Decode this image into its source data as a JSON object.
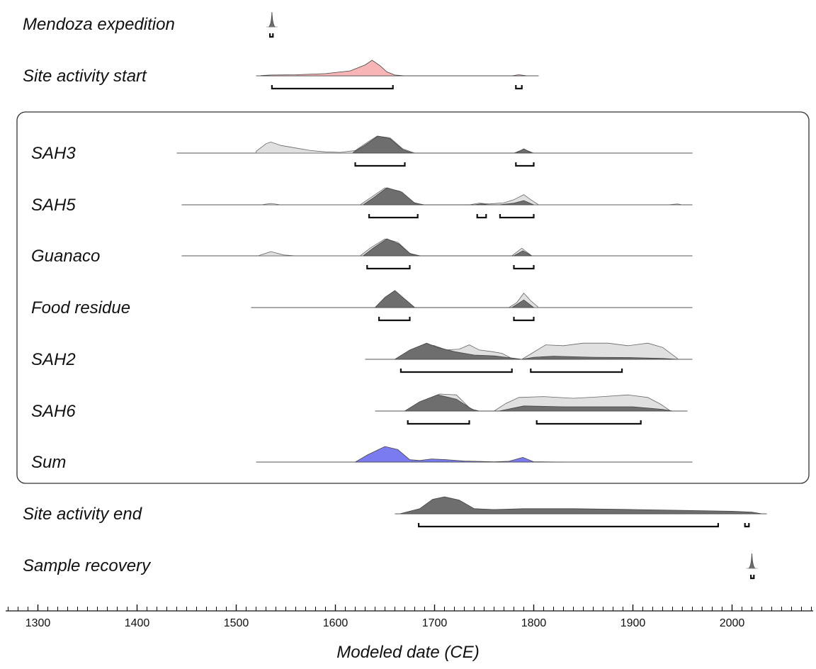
{
  "chart_data": {
    "type": "area",
    "title": "",
    "xlabel": "Modeled date (CE)",
    "ylabel": "",
    "x_unit": "CE",
    "xlim": [
      1270,
      2080
    ],
    "major_ticks": [
      1300,
      1400,
      1500,
      1600,
      1700,
      1800,
      1900,
      2000
    ],
    "minor_tick_step": 10,
    "grid": false,
    "legend": "none",
    "colors": {
      "prior": "#e0e0e0",
      "posterior": "#6e6e6e",
      "site_start": "#f7b5b5",
      "sum": "#7b7bf0",
      "outline": "#444444",
      "frame": "#333333"
    },
    "rows": [
      {
        "label": "Mendoza expedition",
        "style": "point",
        "baseline": false,
        "peaks": [
          {
            "center": 1536,
            "width": 1.2,
            "height": 1
          }
        ],
        "ranges": [
          [
            1534,
            1537
          ]
        ]
      },
      {
        "label": "Site activity start",
        "style": "start",
        "baseline": [
          1520,
          1805
        ],
        "posterior": [
          [
            1525,
            0.02
          ],
          [
            1535,
            0.05
          ],
          [
            1560,
            0.07
          ],
          [
            1590,
            0.14
          ],
          [
            1615,
            0.32
          ],
          [
            1630,
            0.7
          ],
          [
            1637,
            1.0
          ],
          [
            1645,
            0.65
          ],
          [
            1652,
            0.25
          ],
          [
            1660,
            0.05
          ],
          [
            1670,
            0.0
          ],
          [
            1778,
            0.0
          ],
          [
            1785,
            0.07
          ],
          [
            1793,
            0.0
          ]
        ],
        "ranges": [
          [
            1536,
            1658
          ],
          [
            1782,
            1788
          ]
        ]
      },
      {
        "label": "SAH3",
        "style": "sample",
        "baseline": [
          1440,
          1960
        ],
        "prior": [
          [
            1520,
            0.1
          ],
          [
            1530,
            0.55
          ],
          [
            1535,
            0.65
          ],
          [
            1545,
            0.45
          ],
          [
            1560,
            0.3
          ],
          [
            1575,
            0.15
          ],
          [
            1590,
            0.07
          ],
          [
            1605,
            0.04
          ],
          [
            1620,
            0.15
          ],
          [
            1630,
            0.55
          ],
          [
            1642,
            1.0
          ],
          [
            1655,
            0.9
          ],
          [
            1668,
            0.25
          ],
          [
            1680,
            0.0
          ],
          [
            1780,
            0.0
          ],
          [
            1790,
            0.22
          ],
          [
            1800,
            0.0
          ]
        ],
        "posterior": [
          [
            1618,
            0.05
          ],
          [
            1628,
            0.4
          ],
          [
            1643,
            1.0
          ],
          [
            1655,
            0.85
          ],
          [
            1668,
            0.2
          ],
          [
            1678,
            0.0
          ],
          [
            1782,
            0.0
          ],
          [
            1790,
            0.25
          ],
          [
            1798,
            0.0
          ]
        ],
        "ranges": [
          [
            1620,
            1670
          ],
          [
            1782,
            1800
          ]
        ]
      },
      {
        "label": "SAH5",
        "style": "sample",
        "baseline": [
          1445,
          1960
        ],
        "prior": [
          [
            1525,
            0.0
          ],
          [
            1535,
            0.08
          ],
          [
            1545,
            0.0
          ],
          [
            1625,
            0.0
          ],
          [
            1635,
            0.4
          ],
          [
            1650,
            1.0
          ],
          [
            1665,
            0.8
          ],
          [
            1678,
            0.15
          ],
          [
            1688,
            0.0
          ],
          [
            1735,
            0.0
          ],
          [
            1745,
            0.1
          ],
          [
            1755,
            0.05
          ],
          [
            1770,
            0.12
          ],
          [
            1780,
            0.3
          ],
          [
            1790,
            0.6
          ],
          [
            1797,
            0.3
          ],
          [
            1805,
            0.0
          ],
          [
            1935,
            0.0
          ],
          [
            1945,
            0.05
          ],
          [
            1950,
            0.0
          ]
        ],
        "posterior": [
          [
            1628,
            0.0
          ],
          [
            1638,
            0.4
          ],
          [
            1652,
            1.0
          ],
          [
            1667,
            0.75
          ],
          [
            1680,
            0.1
          ],
          [
            1690,
            0.0
          ],
          [
            1740,
            0.0
          ],
          [
            1747,
            0.06
          ],
          [
            1755,
            0.0
          ],
          [
            1765,
            0.0
          ],
          [
            1780,
            0.1
          ],
          [
            1790,
            0.25
          ],
          [
            1800,
            0.0
          ]
        ],
        "ranges": [
          [
            1634,
            1683
          ],
          [
            1743,
            1752
          ],
          [
            1766,
            1800
          ]
        ]
      },
      {
        "label": "Guanaco",
        "style": "sample",
        "baseline": [
          1445,
          1960
        ],
        "prior": [
          [
            1522,
            0.0
          ],
          [
            1535,
            0.25
          ],
          [
            1548,
            0.05
          ],
          [
            1560,
            0.0
          ],
          [
            1625,
            0.0
          ],
          [
            1635,
            0.45
          ],
          [
            1650,
            1.0
          ],
          [
            1663,
            0.8
          ],
          [
            1675,
            0.15
          ],
          [
            1685,
            0.0
          ],
          [
            1778,
            0.0
          ],
          [
            1788,
            0.45
          ],
          [
            1798,
            0.0
          ]
        ],
        "posterior": [
          [
            1628,
            0.0
          ],
          [
            1638,
            0.45
          ],
          [
            1652,
            1.0
          ],
          [
            1664,
            0.7
          ],
          [
            1676,
            0.1
          ],
          [
            1686,
            0.0
          ],
          [
            1780,
            0.0
          ],
          [
            1789,
            0.3
          ],
          [
            1798,
            0.0
          ]
        ],
        "ranges": [
          [
            1632,
            1675
          ],
          [
            1780,
            1800
          ]
        ]
      },
      {
        "label": "Food residue",
        "style": "sample",
        "baseline": [
          1515,
          1960
        ],
        "prior": [
          [
            1640,
            0.0
          ],
          [
            1650,
            0.6
          ],
          [
            1660,
            1.0
          ],
          [
            1670,
            0.5
          ],
          [
            1680,
            0.0
          ],
          [
            1775,
            0.0
          ],
          [
            1783,
            0.3
          ],
          [
            1790,
            0.85
          ],
          [
            1797,
            0.4
          ],
          [
            1805,
            0.0
          ]
        ],
        "posterior": [
          [
            1640,
            0.0
          ],
          [
            1650,
            0.6
          ],
          [
            1660,
            1.0
          ],
          [
            1670,
            0.5
          ],
          [
            1680,
            0.0
          ],
          [
            1778,
            0.0
          ],
          [
            1790,
            0.45
          ],
          [
            1800,
            0.0
          ]
        ],
        "ranges": [
          [
            1644,
            1675
          ],
          [
            1780,
            1800
          ]
        ]
      },
      {
        "label": "SAH2",
        "style": "sample",
        "baseline": [
          1630,
          1960
        ],
        "prior": [
          [
            1660,
            0.0
          ],
          [
            1675,
            0.45
          ],
          [
            1690,
            0.9
          ],
          [
            1700,
            0.8
          ],
          [
            1712,
            0.55
          ],
          [
            1725,
            0.6
          ],
          [
            1735,
            0.85
          ],
          [
            1745,
            0.55
          ],
          [
            1758,
            0.45
          ],
          [
            1768,
            0.35
          ],
          [
            1778,
            0.05
          ],
          [
            1788,
            0.0
          ],
          [
            1798,
            0.35
          ],
          [
            1812,
            0.85
          ],
          [
            1830,
            0.8
          ],
          [
            1850,
            0.95
          ],
          [
            1875,
            0.95
          ],
          [
            1895,
            0.8
          ],
          [
            1915,
            0.95
          ],
          [
            1930,
            0.7
          ],
          [
            1945,
            0.05
          ]
        ],
        "posterior": [
          [
            1660,
            0.0
          ],
          [
            1675,
            0.55
          ],
          [
            1692,
            0.95
          ],
          [
            1703,
            0.7
          ],
          [
            1720,
            0.45
          ],
          [
            1740,
            0.25
          ],
          [
            1760,
            0.2
          ],
          [
            1778,
            0.08
          ],
          [
            1788,
            0.0
          ],
          [
            1800,
            0.12
          ],
          [
            1820,
            0.18
          ],
          [
            1860,
            0.12
          ],
          [
            1900,
            0.1
          ],
          [
            1930,
            0.05
          ],
          [
            1945,
            0.0
          ]
        ],
        "ranges": [
          [
            1666,
            1778
          ],
          [
            1797,
            1889
          ]
        ]
      },
      {
        "label": "SAH6",
        "style": "sample",
        "baseline": [
          1640,
          1955
        ],
        "prior": [
          [
            1670,
            0.0
          ],
          [
            1685,
            0.5
          ],
          [
            1705,
            1.0
          ],
          [
            1722,
            0.95
          ],
          [
            1735,
            0.2
          ],
          [
            1742,
            0.0
          ],
          [
            1760,
            0.0
          ],
          [
            1772,
            0.45
          ],
          [
            1785,
            0.8
          ],
          [
            1810,
            0.85
          ],
          [
            1840,
            0.75
          ],
          [
            1870,
            0.85
          ],
          [
            1895,
            0.95
          ],
          [
            1915,
            0.8
          ],
          [
            1928,
            0.4
          ],
          [
            1938,
            0.0
          ]
        ],
        "posterior": [
          [
            1670,
            0.0
          ],
          [
            1685,
            0.55
          ],
          [
            1703,
            0.95
          ],
          [
            1722,
            0.7
          ],
          [
            1738,
            0.1
          ],
          [
            1745,
            0.0
          ],
          [
            1765,
            0.0
          ],
          [
            1790,
            0.3
          ],
          [
            1830,
            0.25
          ],
          [
            1900,
            0.25
          ],
          [
            1930,
            0.1
          ],
          [
            1940,
            0.0
          ]
        ],
        "ranges": [
          [
            1673,
            1735
          ],
          [
            1803,
            1908
          ]
        ]
      },
      {
        "label": "Sum",
        "style": "sum",
        "baseline": [
          1520,
          1960
        ],
        "posterior": [
          [
            1620,
            0.0
          ],
          [
            1632,
            0.45
          ],
          [
            1650,
            1.0
          ],
          [
            1663,
            0.8
          ],
          [
            1675,
            0.15
          ],
          [
            1685,
            0.1
          ],
          [
            1697,
            0.2
          ],
          [
            1712,
            0.15
          ],
          [
            1730,
            0.07
          ],
          [
            1760,
            0.02
          ],
          [
            1775,
            0.05
          ],
          [
            1789,
            0.3
          ],
          [
            1800,
            0.02
          ],
          [
            1830,
            0.0
          ]
        ],
        "ranges": []
      },
      {
        "label": "Site activity end",
        "style": "end",
        "baseline": [
          1660,
          2035
        ],
        "posterior": [
          [
            1665,
            0.0
          ],
          [
            1685,
            0.3
          ],
          [
            1698,
            0.85
          ],
          [
            1710,
            1.0
          ],
          [
            1725,
            0.8
          ],
          [
            1740,
            0.3
          ],
          [
            1760,
            0.25
          ],
          [
            1790,
            0.3
          ],
          [
            1840,
            0.3
          ],
          [
            1900,
            0.25
          ],
          [
            1950,
            0.2
          ],
          [
            2000,
            0.15
          ],
          [
            2020,
            0.1
          ],
          [
            2030,
            0.0
          ]
        ],
        "ranges": [
          [
            1684,
            1986
          ],
          [
            2013,
            2017
          ]
        ]
      },
      {
        "label": "Sample recovery",
        "style": "point",
        "baseline": false,
        "peaks": [
          {
            "center": 2020,
            "width": 1.2,
            "height": 1
          }
        ],
        "ranges": [
          [
            2019,
            2022
          ]
        ]
      }
    ],
    "boxed_group": [
      "SAH3",
      "SAH5",
      "Guanaco",
      "Food residue",
      "SAH2",
      "SAH6",
      "Sum"
    ]
  }
}
